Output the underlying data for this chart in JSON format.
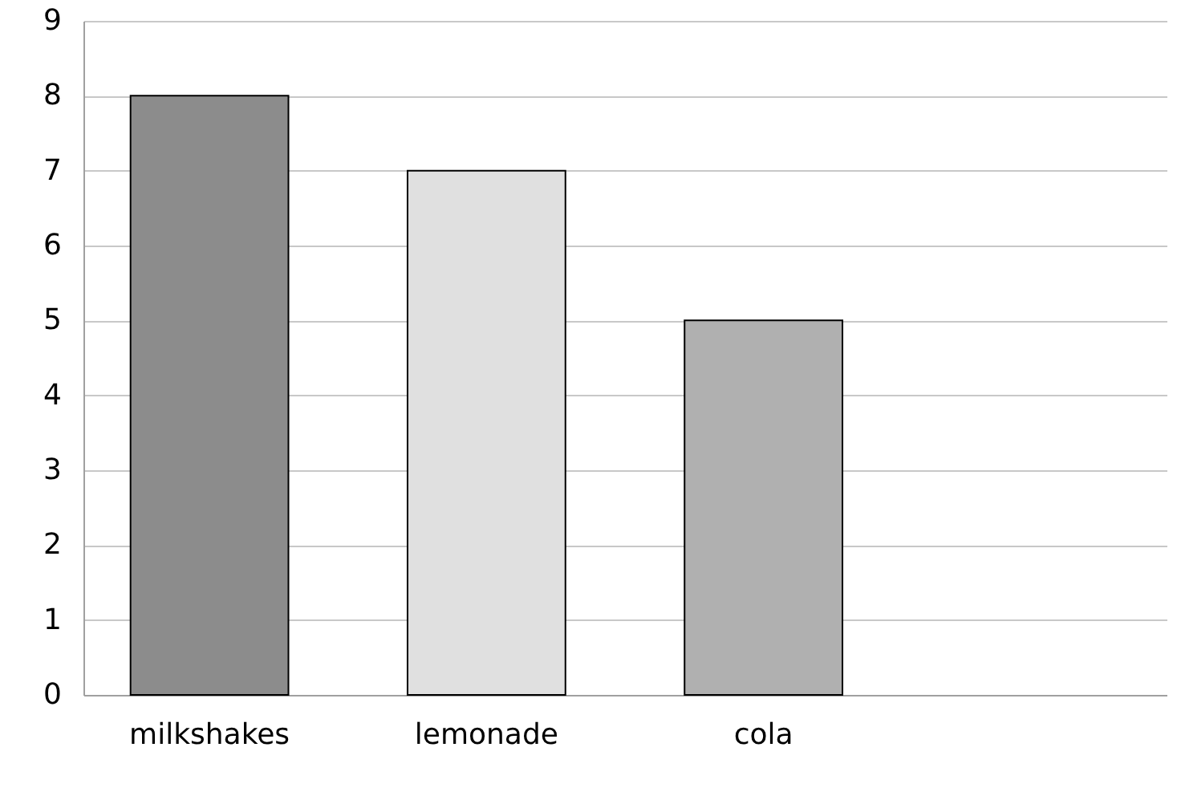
{
  "chart_data": {
    "type": "bar",
    "categories": [
      "milkshakes",
      "lemonade",
      "cola",
      null
    ],
    "values": [
      8,
      7,
      5,
      null
    ],
    "colors": [
      "#8c8c8c",
      "#e0e0e0",
      "#b0b0b0",
      "#b0b0b0"
    ],
    "ylim": [
      0,
      9
    ],
    "yticks": [
      0,
      1,
      2,
      3,
      4,
      5,
      6,
      7,
      8,
      9
    ],
    "grid": "y"
  }
}
